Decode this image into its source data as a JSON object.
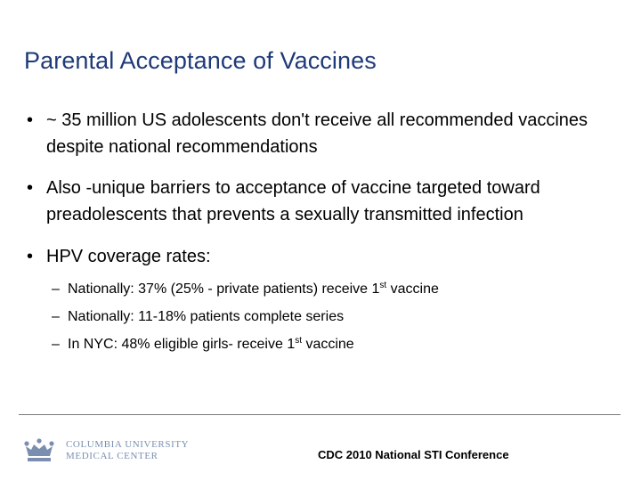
{
  "slide": {
    "title": "Parental Acceptance of Vaccines",
    "bullets": [
      {
        "marker": "•",
        "text": "~ 35 million US adolescents don't receive all recommended vaccines despite national recommendations"
      },
      {
        "marker": "•",
        "text": "Also -unique barriers to acceptance of vaccine targeted toward preadolescents that prevents a sexually transmitted infection"
      },
      {
        "marker": "•",
        "text": "HPV coverage rates:"
      }
    ],
    "sub_bullets": [
      {
        "marker": "–",
        "pre": "Nationally: 37% (25% - private patients) receive 1",
        "sup": "st",
        "post": " vaccine"
      },
      {
        "marker": "–",
        "pre": "Nationally: 11-18% patients complete series",
        "sup": "",
        "post": ""
      },
      {
        "marker": "–",
        "pre": "In NYC: 48% eligible girls- receive 1",
        "sup": "st",
        "post": " vaccine"
      }
    ]
  },
  "footer": {
    "logo_line1": "COLUMBIA UNIVERSITY",
    "logo_line2": "MEDICAL CENTER",
    "conference": "CDC 2010 National STI Conference"
  },
  "colors": {
    "title": "#1f3a78",
    "logo": "#7a8fb0"
  },
  "icons": {
    "logo": "crown-icon"
  }
}
